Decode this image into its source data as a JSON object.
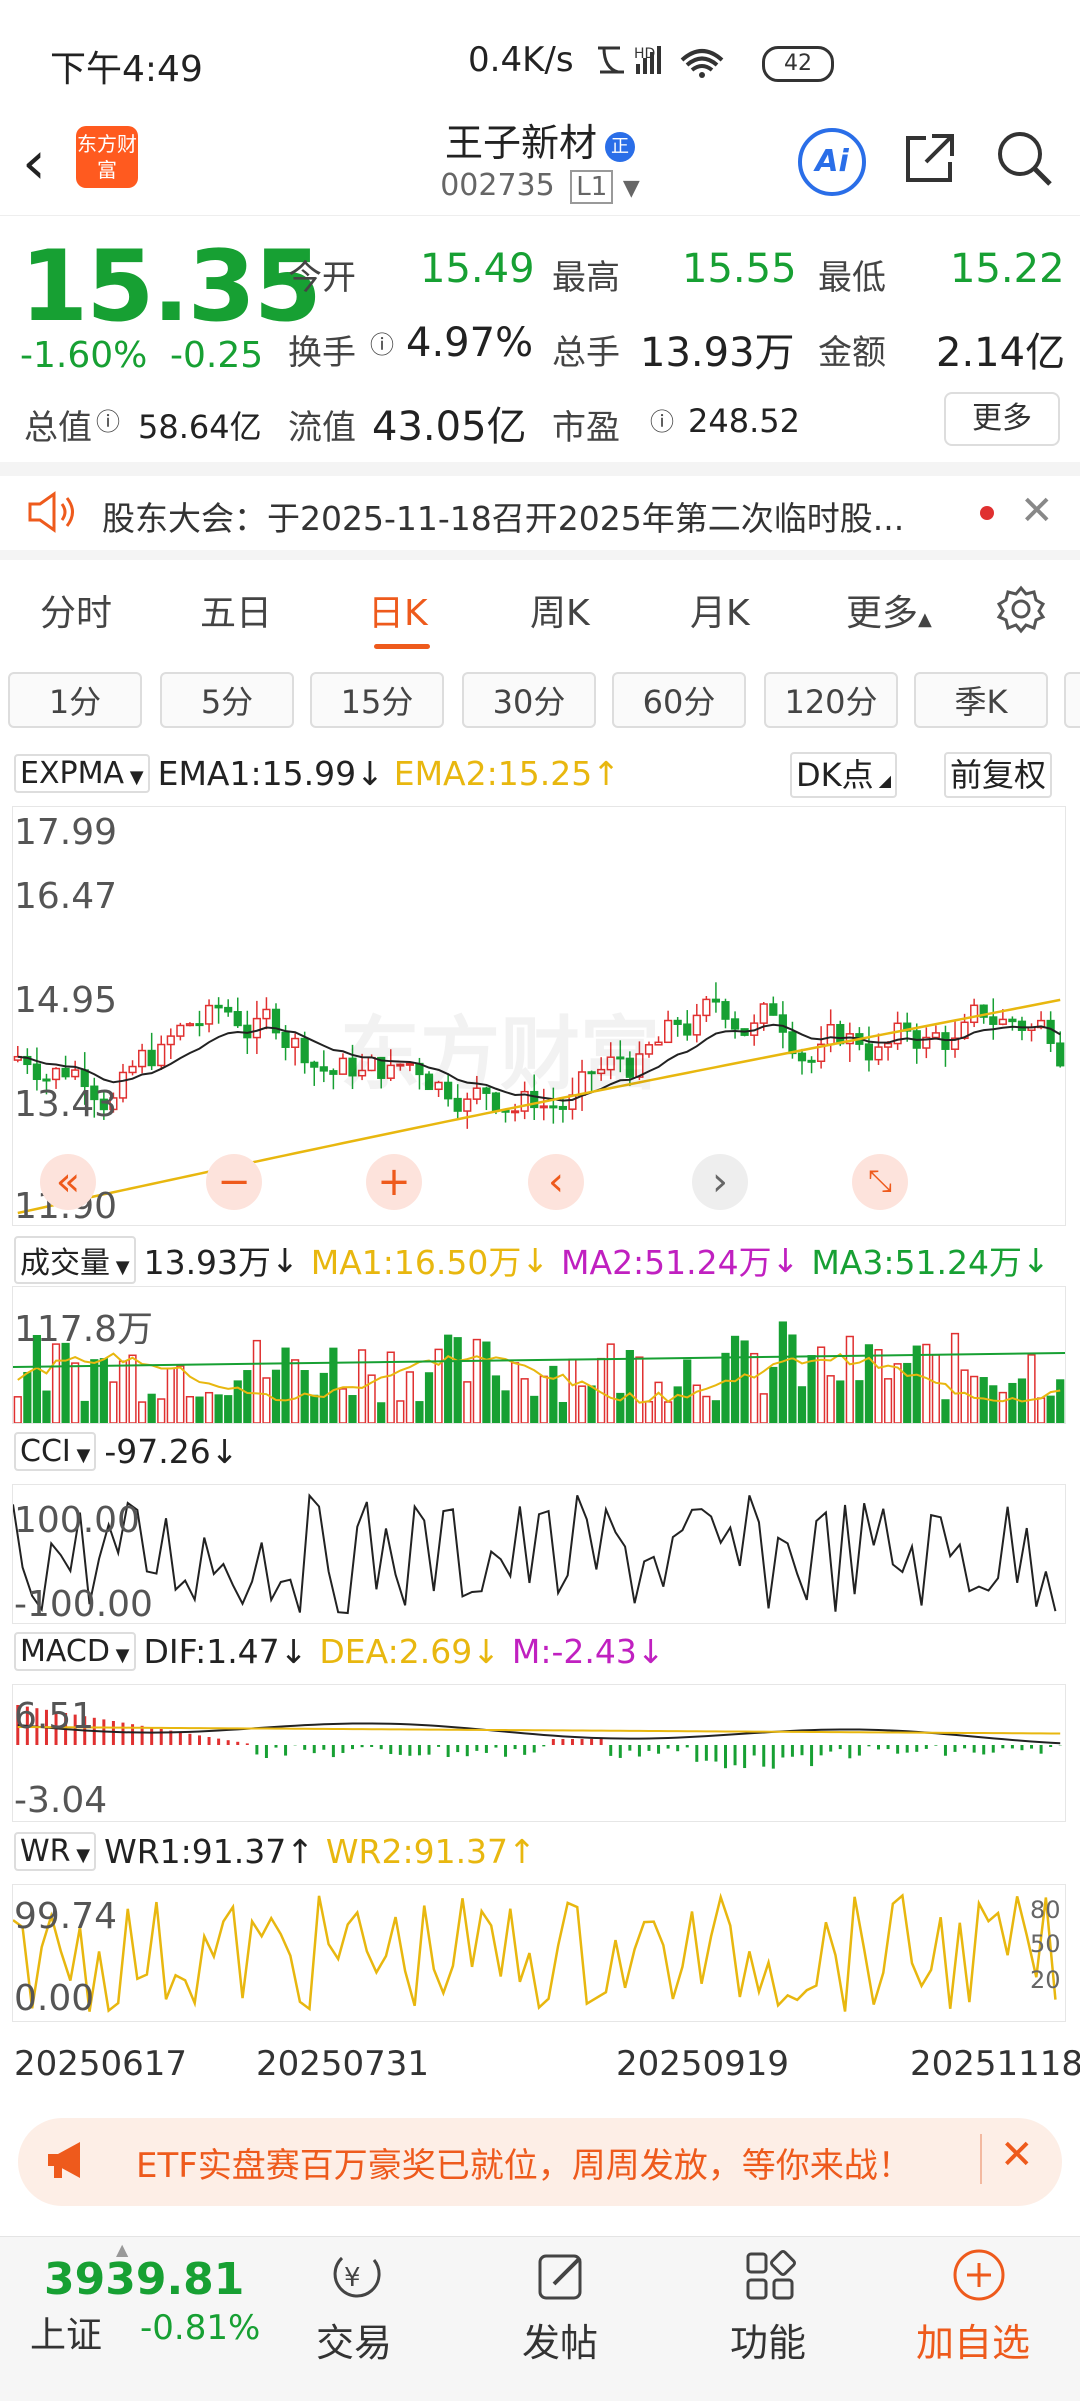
{
  "status_bar": {
    "time": "下午4:49",
    "network": "0.4K/s",
    "battery": "42"
  },
  "header": {
    "title": "王子新材",
    "code": "002735",
    "level": "L1",
    "logo_text": "东方财富",
    "ai_label": "Ai"
  },
  "quote": {
    "price": "15.35",
    "change_pct": "-1.60%",
    "change": "-0.25",
    "fields": [
      {
        "label": "今开",
        "value": "15.49"
      },
      {
        "label": "最高",
        "value": "15.55"
      },
      {
        "label": "最低",
        "value": "15.22"
      },
      {
        "label": "换手",
        "value": "4.97%"
      },
      {
        "label": "总手",
        "value": "13.93万"
      },
      {
        "label": "金额",
        "value": "2.14亿"
      },
      {
        "label": "总值",
        "value": "58.64亿"
      },
      {
        "label": "流值",
        "value": "43.05亿"
      },
      {
        "label": "市盈",
        "value": "248.52"
      }
    ],
    "more_label": "更多"
  },
  "notice": {
    "text": "股东大会：于2025-11-18召开2025年第二次临时股..."
  },
  "tabs": [
    "分时",
    "五日",
    "日K",
    "周K",
    "月K",
    "更多"
  ],
  "periods": [
    "1分",
    "5分",
    "15分",
    "30分",
    "60分",
    "120分",
    "季K"
  ],
  "main_chart": {
    "indicator": "EXPMA",
    "ema1": "EMA1:15.99",
    "ema1_arrow": "↓",
    "ema2": "EMA2:15.25",
    "ema2_arrow": "↑",
    "dk": "DK点",
    "adjust": "前复权",
    "y_labels": [
      "17.99",
      "16.47",
      "14.95",
      "13.43",
      "11.90"
    ],
    "colors": {
      "up": "#e03030",
      "down": "#17a033",
      "ema1": "#222222",
      "ema2": "#e8b70f"
    }
  },
  "volume": {
    "indicator": "成交量",
    "value": "13.93万",
    "arrow": "↓",
    "ma1": "MA1:16.50万",
    "ma1_arrow": "↓",
    "ma2": "MA2:51.24万",
    "ma2_arrow": "↓",
    "ma3": "MA3:51.24万",
    "ma3_arrow": "↓",
    "top_label": "117.8万"
  },
  "cci": {
    "indicator": "CCI",
    "value": "-97.26",
    "arrow": "↓",
    "labels": [
      "100.00",
      "-100.00"
    ]
  },
  "macd": {
    "indicator": "MACD",
    "dif": "DIF:1.47",
    "dif_arrow": "↓",
    "dea": "DEA:2.69",
    "dea_arrow": "↓",
    "m": "M:-2.43",
    "m_arrow": "↓",
    "labels": [
      "6.51",
      "-3.04"
    ]
  },
  "wr": {
    "indicator": "WR",
    "wr1": "WR1:91.37",
    "wr1_arrow": "↑",
    "wr2": "WR2:91.37",
    "wr2_arrow": "↑",
    "labels": [
      "99.74",
      "0.00"
    ],
    "right_labels": [
      "80",
      "50",
      "20"
    ]
  },
  "dates": [
    "20250617",
    "20250731",
    "20250919",
    "20251118"
  ],
  "banner": {
    "text": "ETF实盘赛百万豪奖已就位，周周发放，等你来战！"
  },
  "bottom": {
    "index_value": "3939.81",
    "index_name": "上证",
    "index_change": "-0.81%",
    "nav": [
      "交易",
      "发帖",
      "功能",
      "加自选"
    ]
  }
}
